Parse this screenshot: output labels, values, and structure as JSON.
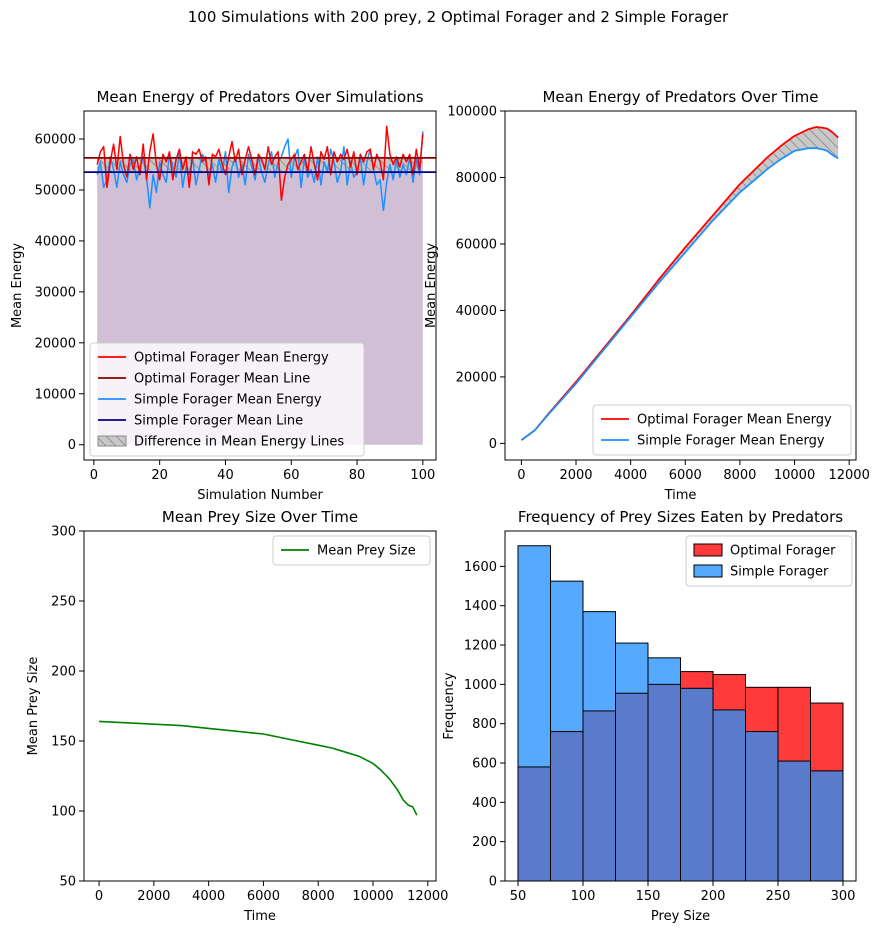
{
  "suptitle": "100 Simulations with 200 prey, 2 Optimal Forager and 2 Simple Forager",
  "chart_data": [
    {
      "type": "line",
      "title": "Mean Energy of Predators Over Simulations",
      "xlabel": "Simulation Number",
      "ylabel": "Mean Energy",
      "xlim": [
        -3,
        104
      ],
      "ylim": [
        -3000,
        65500
      ],
      "xticks": [
        0,
        20,
        40,
        60,
        80,
        100
      ],
      "yticks": [
        0,
        10000,
        20000,
        30000,
        40000,
        50000,
        60000
      ],
      "x_start": 1,
      "series": [
        {
          "name": "Optimal Forager Mean Energy",
          "color": "#ff0000",
          "values": [
            55000,
            57500,
            58500,
            50500,
            55500,
            59000,
            54000,
            60500,
            55000,
            52500,
            57000,
            54000,
            56500,
            53000,
            59000,
            52000,
            57500,
            61000,
            55000,
            52000,
            57000,
            55500,
            57500,
            52000,
            56000,
            58000,
            54000,
            56500,
            50500,
            57500,
            57000,
            58000,
            55500,
            56500,
            51000,
            57000,
            56500,
            58000,
            55000,
            53000,
            56500,
            59500,
            55500,
            58000,
            53000,
            56000,
            58500,
            56000,
            53000,
            57000,
            56000,
            54000,
            58500,
            55000,
            56500,
            57500,
            48000,
            52500,
            55000,
            56000,
            57000,
            54000,
            55500,
            57000,
            53500,
            58500,
            55000,
            52000,
            57500,
            56000,
            58500,
            53000,
            57500,
            55500,
            57000,
            56000,
            58000,
            54500,
            57500,
            53000,
            57000,
            55500,
            57500,
            58000,
            54000,
            57000,
            55500,
            52000,
            62500,
            57000,
            55000,
            56500,
            54500,
            57000,
            55500,
            57000,
            53000,
            58000,
            54000,
            61000
          ]
        },
        {
          "name": "Optimal Forager Mean Line",
          "color": "#8b0000",
          "constant": 56300
        },
        {
          "name": "Simple Forager Mean Energy",
          "color": "#1e90ff",
          "values": [
            53000,
            55500,
            50500,
            52000,
            56500,
            54000,
            50500,
            55500,
            53000,
            51500,
            55000,
            56000,
            52000,
            54500,
            56500,
            52500,
            46500,
            53000,
            49500,
            55500,
            53000,
            51500,
            57000,
            54500,
            52500,
            57500,
            50500,
            54500,
            53000,
            56500,
            51000,
            54000,
            57000,
            55500,
            52500,
            55000,
            51500,
            56000,
            53500,
            57500,
            49500,
            54500,
            56500,
            52500,
            55000,
            51000,
            57000,
            54500,
            52000,
            56500,
            53500,
            51500,
            55000,
            57500,
            52500,
            55500,
            56500,
            58500,
            60000,
            52500,
            56500,
            58000,
            50500,
            56500,
            52500,
            54000,
            51500,
            56500,
            51000,
            55500,
            53500,
            58000,
            55500,
            51500,
            53500,
            58500,
            51000,
            55500,
            52500,
            53500,
            56500,
            51000,
            55500,
            58000,
            54000,
            51000,
            52000,
            46000,
            51500,
            55000,
            52000,
            56000,
            52500,
            55000,
            53000,
            56500,
            51500,
            56000,
            53000,
            61500
          ]
        },
        {
          "name": "Simple Forager Mean Line",
          "color": "#00008b",
          "constant": 53500
        },
        {
          "name": "Difference in Mean Energy Lines",
          "color": "#808080",
          "kind": "hatched-fill"
        }
      ],
      "background_fill": {
        "color": "#d1bfd6",
        "from": 1,
        "to": 100
      },
      "legend": "lower-left"
    },
    {
      "type": "line",
      "title": "Mean Energy of Predators Over Time",
      "xlabel": "Time",
      "ylabel": "Mean Energy",
      "xlim": [
        -600,
        12250
      ],
      "ylim": [
        -5000,
        100000
      ],
      "xticks": [
        0,
        2000,
        4000,
        6000,
        8000,
        10000,
        12000
      ],
      "yticks": [
        0,
        20000,
        40000,
        60000,
        80000,
        100000
      ],
      "series": [
        {
          "name": "Optimal Forager Mean Energy",
          "color": "#ff0000",
          "x": [
            0,
            500,
            1000,
            2000,
            3000,
            4000,
            5000,
            6000,
            7000,
            8000,
            9000,
            9500,
            10000,
            10500,
            10800,
            11000,
            11200,
            11400,
            11600
          ],
          "values": [
            1000,
            4000,
            9000,
            18500,
            28500,
            38500,
            49000,
            59000,
            68500,
            78000,
            86000,
            89500,
            92500,
            94500,
            95200,
            95000,
            94700,
            93500,
            92000
          ]
        },
        {
          "name": "Simple Forager Mean Energy",
          "color": "#1e90ff",
          "x": [
            0,
            500,
            1000,
            2000,
            3000,
            4000,
            5000,
            6000,
            7000,
            8000,
            9000,
            9500,
            10000,
            10500,
            10800,
            11000,
            11200,
            11400,
            11600
          ],
          "values": [
            1000,
            4000,
            8800,
            18000,
            28000,
            38000,
            48000,
            57500,
            67000,
            75500,
            82500,
            85500,
            88000,
            88800,
            88800,
            88500,
            88000,
            86700,
            85700
          ]
        }
      ],
      "legend": "lower-right"
    },
    {
      "type": "line",
      "title": "Mean Prey Size Over Time",
      "xlabel": "Time",
      "ylabel": "Mean Prey Size",
      "xlim": [
        -550,
        12300
      ],
      "ylim": [
        50,
        300
      ],
      "xticks": [
        0,
        2000,
        4000,
        6000,
        8000,
        10000,
        12000
      ],
      "yticks": [
        50,
        100,
        150,
        200,
        250,
        300
      ],
      "series": [
        {
          "name": "Mean Prey Size",
          "color": "#008000",
          "x": [
            0,
            1000,
            2000,
            3000,
            4000,
            5000,
            6000,
            7000,
            8000,
            8500,
            9000,
            9500,
            10000,
            10300,
            10600,
            10900,
            11100,
            11300,
            11450,
            11550,
            11600
          ],
          "values": [
            164,
            163,
            162,
            161,
            159,
            157,
            155,
            151,
            147,
            145,
            142,
            139,
            134,
            129,
            123,
            115,
            108,
            104,
            103,
            99,
            97
          ]
        }
      ],
      "legend": "upper-right"
    },
    {
      "type": "bar",
      "title": "Frequency of Prey Sizes Eaten by Predators",
      "xlabel": "Prey Size",
      "ylabel": "Frequency",
      "xlim": [
        40,
        310
      ],
      "ylim": [
        0,
        1780
      ],
      "xticks": [
        50,
        100,
        150,
        200,
        250,
        300
      ],
      "yticks": [
        0,
        200,
        400,
        600,
        800,
        1000,
        1200,
        1400,
        1600
      ],
      "bin_edges": [
        50,
        75,
        100,
        125,
        150,
        175,
        200,
        225,
        250,
        275,
        300
      ],
      "series": [
        {
          "name": "Optimal Forager",
          "color": "#ff3a3a",
          "values": [
            580,
            760,
            865,
            955,
            1000,
            1065,
            1050,
            985,
            985,
            905
          ]
        },
        {
          "name": "Simple Forager",
          "color": "#55aaff",
          "values": [
            1705,
            1525,
            1370,
            1210,
            1135,
            980,
            870,
            760,
            610,
            560
          ]
        }
      ],
      "overlap_color": "#5a7acc",
      "legend": "upper-right"
    }
  ]
}
